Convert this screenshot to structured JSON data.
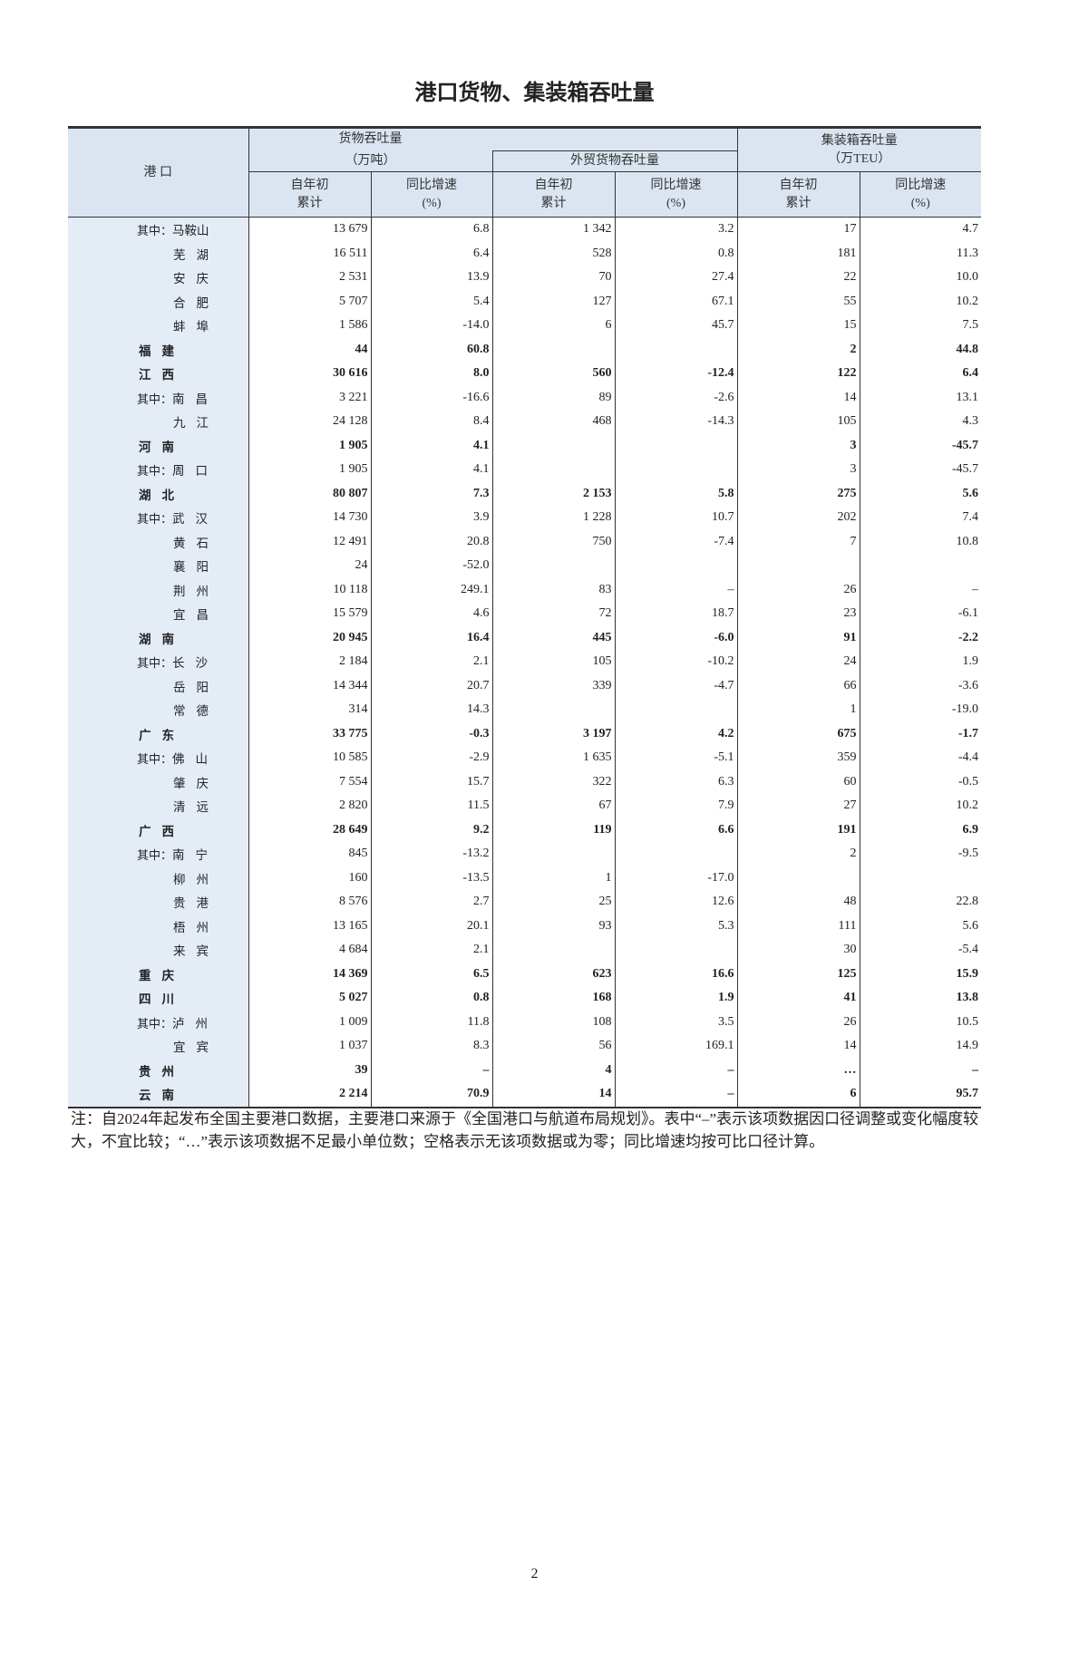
{
  "title": "港口货物、集装箱吞吐量",
  "table": {
    "header": {
      "port": "港 口",
      "cargo": "货物吞吐量",
      "cargo_unit": "（万吨）",
      "foreign": "外贸货物吞吐量",
      "container": "集装箱吞吐量",
      "container_unit": "（万TEU）",
      "sub": [
        {
          "line1": "自年初",
          "line2": "累计"
        },
        {
          "line1": "同比增速",
          "line2": "(%)"
        },
        {
          "line1": "自年初",
          "line2": "累计"
        },
        {
          "line1": "同比增速",
          "line2": "(%)"
        },
        {
          "line1": "自年初",
          "line2": "累计"
        },
        {
          "line1": "同比增速",
          "line2": "(%)"
        }
      ]
    },
    "rows": [
      {
        "prefix": "其中：",
        "port": "马鞍山",
        "cells": [
          "13 679",
          "6.8",
          "1 342",
          "3.2",
          "17",
          "4.7"
        ]
      },
      {
        "port": "芜湖",
        "cells": [
          "16 511",
          "6.4",
          "528",
          "0.8",
          "181",
          "11.3"
        ]
      },
      {
        "port": "安庆",
        "cells": [
          "2 531",
          "13.9",
          "70",
          "27.4",
          "22",
          "10.0"
        ]
      },
      {
        "port": "合肥",
        "cells": [
          "5 707",
          "5.4",
          "127",
          "67.1",
          "55",
          "10.2"
        ]
      },
      {
        "port": "蚌埠",
        "cells": [
          "1 586",
          "-14.0",
          "6",
          "45.7",
          "15",
          "7.5"
        ]
      },
      {
        "province": "福建",
        "cells": [
          "44",
          "60.8",
          null,
          null,
          "2",
          "44.8"
        ]
      },
      {
        "province": "江西",
        "cells": [
          "30 616",
          "8.0",
          "560",
          "-12.4",
          "122",
          "6.4"
        ]
      },
      {
        "prefix": "其中：",
        "port": "南昌",
        "cells": [
          "3 221",
          "-16.6",
          "89",
          "-2.6",
          "14",
          "13.1"
        ]
      },
      {
        "port": "九江",
        "cells": [
          "24 128",
          "8.4",
          "468",
          "-14.3",
          "105",
          "4.3"
        ]
      },
      {
        "province": "河南",
        "cells": [
          "1 905",
          "4.1",
          null,
          null,
          "3",
          "-45.7"
        ]
      },
      {
        "prefix": "其中：",
        "port": "周口",
        "cells": [
          "1 905",
          "4.1",
          null,
          null,
          "3",
          "-45.7"
        ]
      },
      {
        "province": "湖北",
        "cells": [
          "80 807",
          "7.3",
          "2 153",
          "5.8",
          "275",
          "5.6"
        ]
      },
      {
        "prefix": "其中：",
        "port": "武汉",
        "cells": [
          "14 730",
          "3.9",
          "1 228",
          "10.7",
          "202",
          "7.4"
        ]
      },
      {
        "port": "黄石",
        "cells": [
          "12 491",
          "20.8",
          "750",
          "-7.4",
          "7",
          "10.8"
        ]
      },
      {
        "port": "襄阳",
        "cells": [
          "24",
          "-52.0",
          null,
          null,
          null,
          null
        ]
      },
      {
        "port": "荆州",
        "cells": [
          "10 118",
          "249.1",
          "83",
          "–",
          "26",
          "–"
        ]
      },
      {
        "port": "宜昌",
        "cells": [
          "15 579",
          "4.6",
          "72",
          "18.7",
          "23",
          "-6.1"
        ]
      },
      {
        "province": "湖南",
        "cells": [
          "20 945",
          "16.4",
          "445",
          "-6.0",
          "91",
          "-2.2"
        ]
      },
      {
        "prefix": "其中：",
        "port": "长沙",
        "cells": [
          "2 184",
          "2.1",
          "105",
          "-10.2",
          "24",
          "1.9"
        ]
      },
      {
        "port": "岳阳",
        "cells": [
          "14 344",
          "20.7",
          "339",
          "-4.7",
          "66",
          "-3.6"
        ]
      },
      {
        "port": "常德",
        "cells": [
          "314",
          "14.3",
          null,
          null,
          "1",
          "-19.0"
        ]
      },
      {
        "province": "广东",
        "cells": [
          "33 775",
          "-0.3",
          "3 197",
          "4.2",
          "675",
          "-1.7"
        ]
      },
      {
        "prefix": "其中：",
        "port": "佛山",
        "cells": [
          "10 585",
          "-2.9",
          "1 635",
          "-5.1",
          "359",
          "-4.4"
        ]
      },
      {
        "port": "肇庆",
        "cells": [
          "7 554",
          "15.7",
          "322",
          "6.3",
          "60",
          "-0.5"
        ]
      },
      {
        "port": "清远",
        "cells": [
          "2 820",
          "11.5",
          "67",
          "7.9",
          "27",
          "10.2"
        ]
      },
      {
        "province": "广西",
        "cells": [
          "28 649",
          "9.2",
          "119",
          "6.6",
          "191",
          "6.9"
        ]
      },
      {
        "prefix": "其中：",
        "port": "南宁",
        "cells": [
          "845",
          "-13.2",
          null,
          null,
          "2",
          "-9.5"
        ]
      },
      {
        "port": "柳州",
        "cells": [
          "160",
          "-13.5",
          "1",
          "-17.0",
          null,
          null
        ]
      },
      {
        "port": "贵港",
        "cells": [
          "8 576",
          "2.7",
          "25",
          "12.6",
          "48",
          "22.8"
        ]
      },
      {
        "port": "梧州",
        "cells": [
          "13 165",
          "20.1",
          "93",
          "5.3",
          "111",
          "5.6"
        ]
      },
      {
        "port": "来宾",
        "cells": [
          "4 684",
          "2.1",
          null,
          null,
          "30",
          "-5.4"
        ]
      },
      {
        "province": "重庆",
        "cells": [
          "14 369",
          "6.5",
          "623",
          "16.6",
          "125",
          "15.9"
        ]
      },
      {
        "province": "四川",
        "cells": [
          "5 027",
          "0.8",
          "168",
          "1.9",
          "41",
          "13.8"
        ]
      },
      {
        "prefix": "其中：",
        "port": "泸州",
        "cells": [
          "1 009",
          "11.8",
          "108",
          "3.5",
          "26",
          "10.5"
        ]
      },
      {
        "port": "宜宾",
        "cells": [
          "1 037",
          "8.3",
          "56",
          "169.1",
          "14",
          "14.9"
        ]
      },
      {
        "province": "贵州",
        "cells": [
          "39",
          "–",
          "4",
          "–",
          "…",
          "–"
        ]
      },
      {
        "province": "云南",
        "cells": [
          "2 214",
          "70.9",
          "14",
          "–",
          "6",
          "95.7"
        ]
      }
    ]
  },
  "note": "注：自2024年起发布全国主要港口数据，主要港口来源于《全国港口与航道布局规划》。表中“–”表示该项数据因口径调整或变化幅度较大，不宜比较；“…”表示该项数据不足最小单位数；空格表示无该项数据或为零；同比增速均按可比口径计算。",
  "page_number": "2"
}
